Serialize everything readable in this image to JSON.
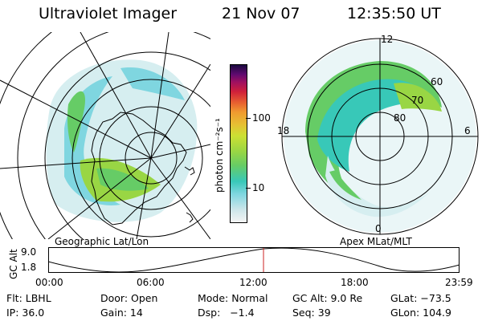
{
  "header": {
    "instrument": "Ultraviolet Imager",
    "date": "21 Nov 07",
    "time": "12:35:50 UT"
  },
  "left_panel": {
    "caption": "Geographic Lat/Lon"
  },
  "right_panel": {
    "caption": "Apex MLat/MLT",
    "lat_labels": [
      "60",
      "70",
      "80"
    ],
    "mlt_labels": {
      "top": "12",
      "left": "18",
      "right": "6",
      "bottom": "0"
    }
  },
  "colorbar": {
    "unit_label": "photon cm⁻²s⁻¹",
    "ticks": [
      "100",
      "10"
    ],
    "log_scale": true,
    "colors": [
      "#f4f4f4",
      "#cde6ea",
      "#7fd6e0",
      "#38c8b8",
      "#66cc66",
      "#99d644",
      "#cce033",
      "#e6c033",
      "#f09a30",
      "#e86030",
      "#d0203a",
      "#a01060",
      "#600a70",
      "#1a0a40"
    ]
  },
  "alt_strip": {
    "ylabel": "GC Alt",
    "y_ticks": [
      "9.0",
      "1.8"
    ],
    "x_ticks": [
      "00:00",
      "06:00",
      "12:00",
      "18:00",
      "23:59"
    ],
    "marker_time": "12:35",
    "marker_color": "#cc2222"
  },
  "info": {
    "row1": [
      {
        "label": "Flt: LBHL"
      },
      {
        "label": "Door: Open"
      },
      {
        "label": "Mode: Normal"
      },
      {
        "label": "GC Alt: 9.0 Re"
      },
      {
        "label": "GLat: −73.5"
      }
    ],
    "row2": [
      {
        "label": "IP: 36.0"
      },
      {
        "label": "Gain: 14"
      },
      {
        "label": "Dsp:   −1.4"
      },
      {
        "label": "Seq: 39"
      },
      {
        "label": "GLon: 104.9"
      }
    ]
  }
}
